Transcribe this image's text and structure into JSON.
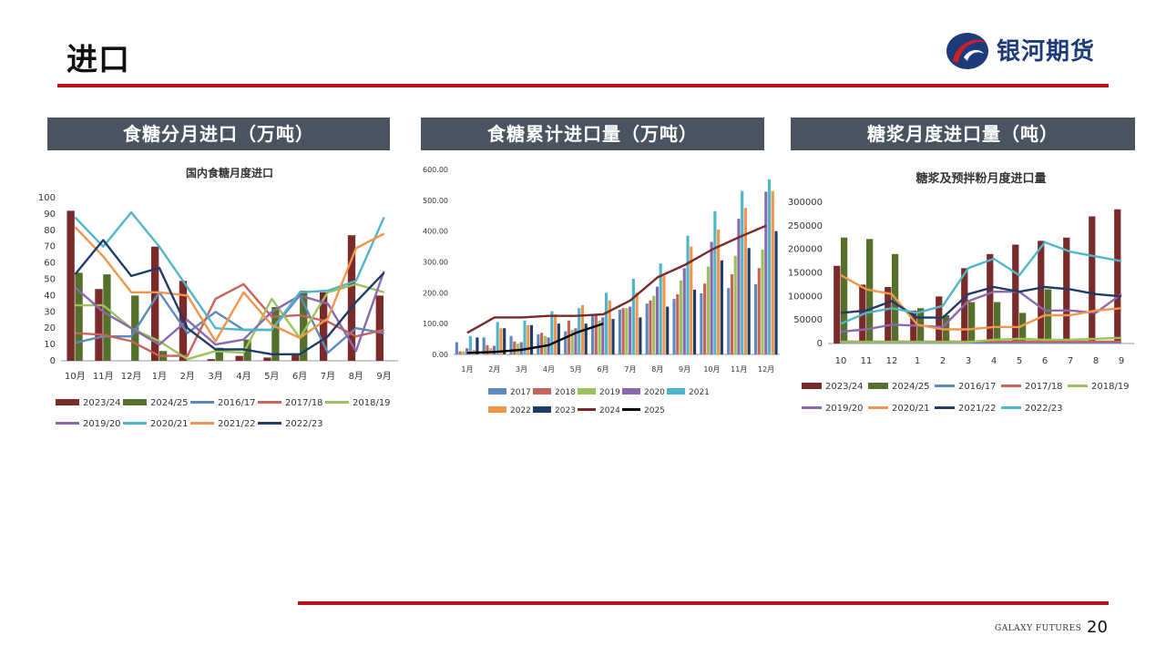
{
  "slide": {
    "title": "进口",
    "logo_text": "银河期货",
    "footer_brand": "GALAXY FUTURES",
    "page_number": "20",
    "colors": {
      "accent_red": "#b3141c",
      "header_bg": "#4a5360",
      "logo_blue": "#1f3a7a"
    }
  },
  "panels": [
    {
      "header": "食糖分月进口（万吨）"
    },
    {
      "header": "食糖累计进口量（万吨）"
    },
    {
      "header": "糖浆月度进口量（吨）"
    }
  ],
  "chart_data": [
    {
      "type": "bar+line",
      "title": "国内食糖月度进口",
      "categories": [
        "10月",
        "11月",
        "12月",
        "1月",
        "2月",
        "3月",
        "4月",
        "5月",
        "6月",
        "7月",
        "8月",
        "9月"
      ],
      "ylim": [
        0,
        100
      ],
      "yticks": [
        "0",
        "10",
        "20",
        "30",
        "40",
        "50",
        "60",
        "70",
        "80",
        "90",
        "100"
      ],
      "grid": false,
      "legend_position": "bottom",
      "bar_series": [
        {
          "name": "2023/24",
          "color": "#7b2a2a",
          "values": [
            92,
            44,
            null,
            70,
            49,
            1,
            3,
            2,
            4,
            42,
            77,
            40
          ]
        },
        {
          "name": "2024/25",
          "color": "#55702c",
          "values": [
            54,
            53,
            40,
            6,
            null,
            8,
            13,
            33,
            43,
            null,
            null,
            null
          ]
        }
      ],
      "line_series": [
        {
          "name": "2016/17",
          "color": "#5b8ac0",
          "values": [
            11,
            15,
            15,
            42,
            17,
            30,
            19,
            19,
            40,
            5,
            20,
            17
          ]
        },
        {
          "name": "2017/18",
          "color": "#c9625a",
          "values": [
            17,
            16,
            12,
            3,
            3,
            38,
            47,
            27,
            28,
            24,
            15,
            19
          ]
        },
        {
          "name": "2018/19",
          "color": "#9cc25b",
          "values": [
            34,
            34,
            20,
            12,
            1,
            6,
            5,
            38,
            14,
            42,
            47,
            42
          ]
        },
        {
          "name": "2019/20",
          "color": "#8a68ad",
          "values": [
            45,
            30,
            20,
            10,
            25,
            10,
            13,
            30,
            40,
            35,
            6,
            55
          ]
        },
        {
          "name": "2020/21",
          "color": "#4fb6c9",
          "values": [
            88,
            70,
            91,
            70,
            45,
            20,
            19,
            19,
            42,
            43,
            49,
            88
          ]
        },
        {
          "name": "2021/22",
          "color": "#f0954a",
          "values": [
            82,
            64,
            42,
            42,
            40,
            12,
            42,
            22,
            14,
            26,
            69,
            78
          ]
        },
        {
          "name": "2022/23",
          "color": "#1f3c68",
          "values": [
            53,
            74,
            52,
            57,
            20,
            7,
            7,
            4,
            4,
            15,
            36,
            54
          ]
        }
      ]
    },
    {
      "type": "bar+line",
      "title": "",
      "categories": [
        "1月",
        "2月",
        "3月",
        "4月",
        "5月",
        "6月",
        "7月",
        "8月",
        "9月",
        "10月",
        "11月",
        "12月"
      ],
      "ylim": [
        0,
        600
      ],
      "yticks": [
        "0.00",
        "100.00",
        "200.00",
        "300.00",
        "400.00",
        "500.00",
        "600.00"
      ],
      "grid": false,
      "legend_position": "bottom",
      "bar_series": [
        {
          "name": "2017",
          "color": "#5b8ac0",
          "values": [
            40,
            55,
            60,
            65,
            75,
            130,
            145,
            165,
            180,
            198,
            215,
            228
          ]
        },
        {
          "name": "2018",
          "color": "#c9625a",
          "values": [
            10,
            30,
            42,
            70,
            110,
            130,
            150,
            175,
            195,
            230,
            260,
            280
          ]
        },
        {
          "name": "2019",
          "color": "#9cc25b",
          "values": [
            10,
            20,
            35,
            60,
            80,
            110,
            150,
            190,
            240,
            285,
            320,
            340
          ]
        },
        {
          "name": "2020",
          "color": "#8a68ad",
          "values": [
            20,
            28,
            40,
            55,
            85,
            120,
            155,
            220,
            280,
            365,
            440,
            528
          ]
        },
        {
          "name": "2021",
          "color": "#4fb6c9",
          "values": [
            60,
            105,
            110,
            140,
            150,
            200,
            245,
            295,
            385,
            465,
            530,
            568
          ]
        },
        {
          "name": "2022",
          "color": "#f0954a",
          "values": [
            15,
            85,
            95,
            130,
            160,
            175,
            200,
            255,
            350,
            405,
            475,
            530
          ]
        },
        {
          "name": "2023",
          "color": "#1f3c68",
          "values": [
            55,
            85,
            95,
            100,
            100,
            115,
            120,
            155,
            210,
            305,
            345,
            400
          ]
        }
      ],
      "line_series": [
        {
          "name": "2024",
          "color": "#7b2a2a",
          "values": [
            70,
            120,
            120,
            125,
            125,
            130,
            175,
            250,
            290,
            340,
            380,
            418
          ]
        },
        {
          "name": "2025",
          "color": "#000000",
          "values": [
            5,
            8,
            15,
            30,
            70,
            100,
            null,
            null,
            null,
            null,
            null,
            null
          ]
        }
      ]
    },
    {
      "type": "bar+line",
      "title": "糖浆及预拌粉月度进口量",
      "categories": [
        "10",
        "11",
        "12",
        "1",
        "2",
        "3",
        "4",
        "5",
        "6",
        "7",
        "8",
        "9"
      ],
      "ylim": [
        0,
        300000
      ],
      "yticks": [
        "0",
        "50000",
        "100000",
        "150000",
        "200000",
        "250000",
        "300000"
      ],
      "grid": false,
      "legend_position": "bottom",
      "bar_series": [
        {
          "name": "2023/24",
          "color": "#7b2a2a",
          "values": [
            165000,
            125000,
            120000,
            70000,
            100000,
            160000,
            190000,
            210000,
            218000,
            225000,
            270000,
            285000
          ]
        },
        {
          "name": "2024/25",
          "color": "#55702c",
          "values": [
            225000,
            222000,
            190000,
            75000,
            60000,
            88000,
            88000,
            65000,
            115000,
            null,
            null,
            null
          ]
        }
      ],
      "line_series": [
        {
          "name": "2016/17",
          "color": "#5b8ac0",
          "values": [
            2000,
            2000,
            2000,
            2000,
            2000,
            2000,
            2000,
            2000,
            2000,
            2000,
            2000,
            2000
          ]
        },
        {
          "name": "2017/18",
          "color": "#c9625a",
          "values": [
            4000,
            4000,
            4000,
            4000,
            4000,
            4000,
            4000,
            4000,
            4000,
            4000,
            4000,
            4000
          ]
        },
        {
          "name": "2018/19",
          "color": "#9cc25b",
          "values": [
            3000,
            3000,
            3000,
            3000,
            3000,
            3000,
            8000,
            10000,
            8000,
            8000,
            10000,
            12000
          ]
        },
        {
          "name": "2019/20",
          "color": "#8a68ad",
          "values": [
            25000,
            30000,
            40000,
            38000,
            35000,
            90000,
            110000,
            110000,
            70000,
            70000,
            65000,
            105000
          ]
        },
        {
          "name": "2020/21",
          "color": "#f0954a",
          "values": [
            145000,
            115000,
            105000,
            40000,
            30000,
            30000,
            35000,
            35000,
            60000,
            60000,
            70000,
            75000
          ]
        },
        {
          "name": "2021/22",
          "color": "#1f3c68",
          "values": [
            65000,
            70000,
            90000,
            55000,
            55000,
            105000,
            120000,
            110000,
            120000,
            115000,
            105000,
            100000
          ]
        },
        {
          "name": "2022/23",
          "color": "#4fb6c9",
          "values": [
            42000,
            65000,
            75000,
            65000,
            80000,
            160000,
            180000,
            145000,
            215000,
            195000,
            185000,
            175000
          ]
        }
      ]
    }
  ]
}
